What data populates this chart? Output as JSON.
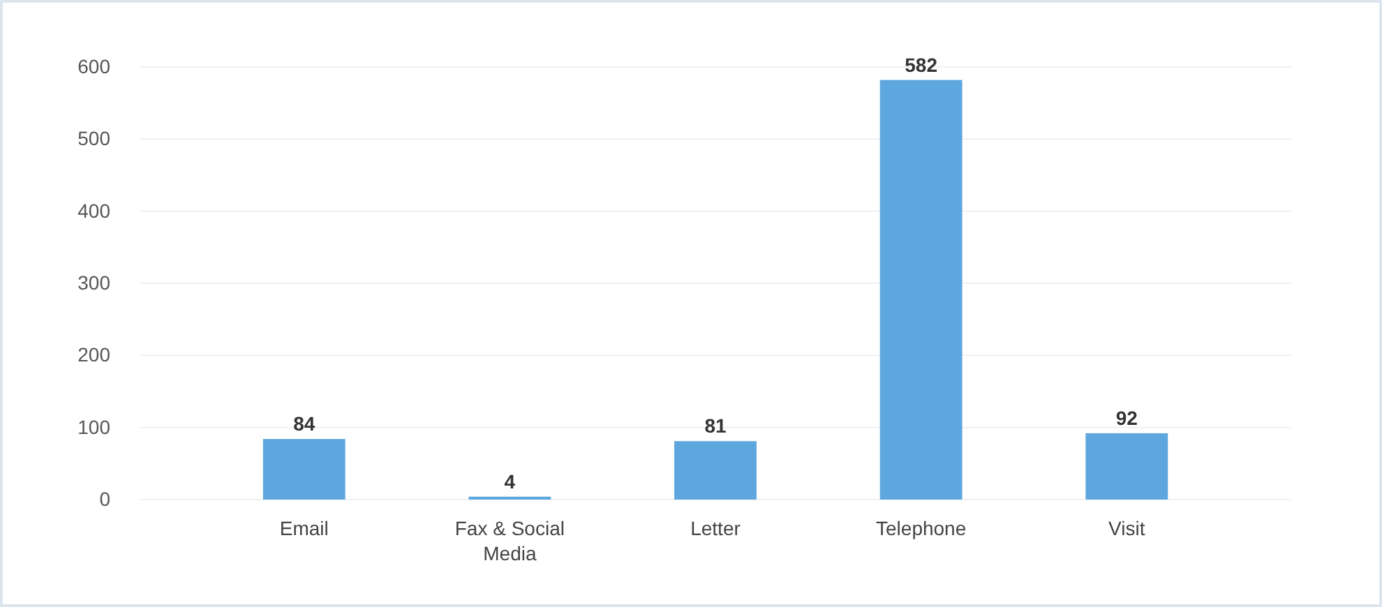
{
  "chart_data": {
    "type": "bar",
    "categories": [
      "Email",
      "Fax & Social Media",
      "Letter",
      "Telephone",
      "Visit"
    ],
    "values": [
      84,
      4,
      81,
      582,
      92
    ],
    "color": "#5ea7de",
    "ylim": [
      0,
      600
    ],
    "yticks": [
      0,
      100,
      200,
      300,
      400,
      500,
      600
    ],
    "grid": "y",
    "data_labels": true
  }
}
